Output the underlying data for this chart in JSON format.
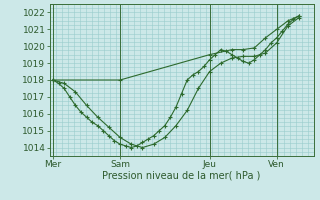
{
  "background_color": "#cce8e8",
  "grid_color": "#99cccc",
  "line_color": "#2d6a2d",
  "marker_color": "#2d6a2d",
  "xlabel": "Pression niveau de la mer( hPa )",
  "ylim": [
    1013.5,
    1022.5
  ],
  "yticks": [
    1014,
    1015,
    1016,
    1017,
    1018,
    1019,
    1020,
    1021,
    1022
  ],
  "x_tick_labels": [
    "Mer",
    "Sam",
    "Jeu",
    "Ven"
  ],
  "x_tick_positions": [
    0,
    6,
    14,
    20
  ],
  "x_vlines": [
    0,
    6,
    14,
    20
  ],
  "xlim": [
    -0.3,
    23.3
  ],
  "series": [
    {
      "x": [
        0,
        0.5,
        1,
        1.5,
        2,
        2.5,
        3,
        3.5,
        4,
        4.5,
        5,
        5.5,
        6,
        6.5,
        7,
        7.5,
        8,
        8.5,
        9,
        9.5,
        10,
        10.5,
        11,
        11.5,
        12,
        12.5,
        13,
        13.5,
        14,
        14.5,
        15,
        15.5,
        16,
        16.5,
        17,
        17.5,
        18,
        18.5,
        19,
        19.5,
        20,
        20.5,
        21,
        21.5,
        22
      ],
      "y": [
        1018.0,
        1017.8,
        1017.5,
        1017.0,
        1016.5,
        1016.1,
        1015.8,
        1015.5,
        1015.3,
        1015.0,
        1014.7,
        1014.4,
        1014.2,
        1014.1,
        1014.0,
        1014.1,
        1014.3,
        1014.5,
        1014.7,
        1015.0,
        1015.3,
        1015.8,
        1016.4,
        1017.2,
        1018.0,
        1018.3,
        1018.5,
        1018.8,
        1019.2,
        1019.5,
        1019.8,
        1019.7,
        1019.5,
        1019.3,
        1019.1,
        1019.0,
        1019.2,
        1019.5,
        1019.8,
        1020.2,
        1020.5,
        1020.9,
        1021.3,
        1021.6,
        1021.8
      ]
    },
    {
      "x": [
        0,
        1,
        2,
        3,
        4,
        5,
        6,
        7,
        8,
        9,
        10,
        11,
        12,
        13,
        14,
        15,
        16,
        17,
        18,
        19,
        20,
        21,
        22
      ],
      "y": [
        1018.0,
        1017.8,
        1017.3,
        1016.5,
        1015.8,
        1015.2,
        1014.6,
        1014.2,
        1014.0,
        1014.2,
        1014.6,
        1015.3,
        1016.2,
        1017.5,
        1018.5,
        1019.0,
        1019.3,
        1019.4,
        1019.4,
        1019.6,
        1020.2,
        1021.2,
        1021.7
      ]
    },
    {
      "x": [
        0,
        6,
        14,
        16,
        17,
        18,
        19,
        20,
        21,
        22
      ],
      "y": [
        1018.0,
        1018.0,
        1019.5,
        1019.8,
        1019.8,
        1019.9,
        1020.5,
        1021.0,
        1021.5,
        1021.8
      ]
    }
  ]
}
